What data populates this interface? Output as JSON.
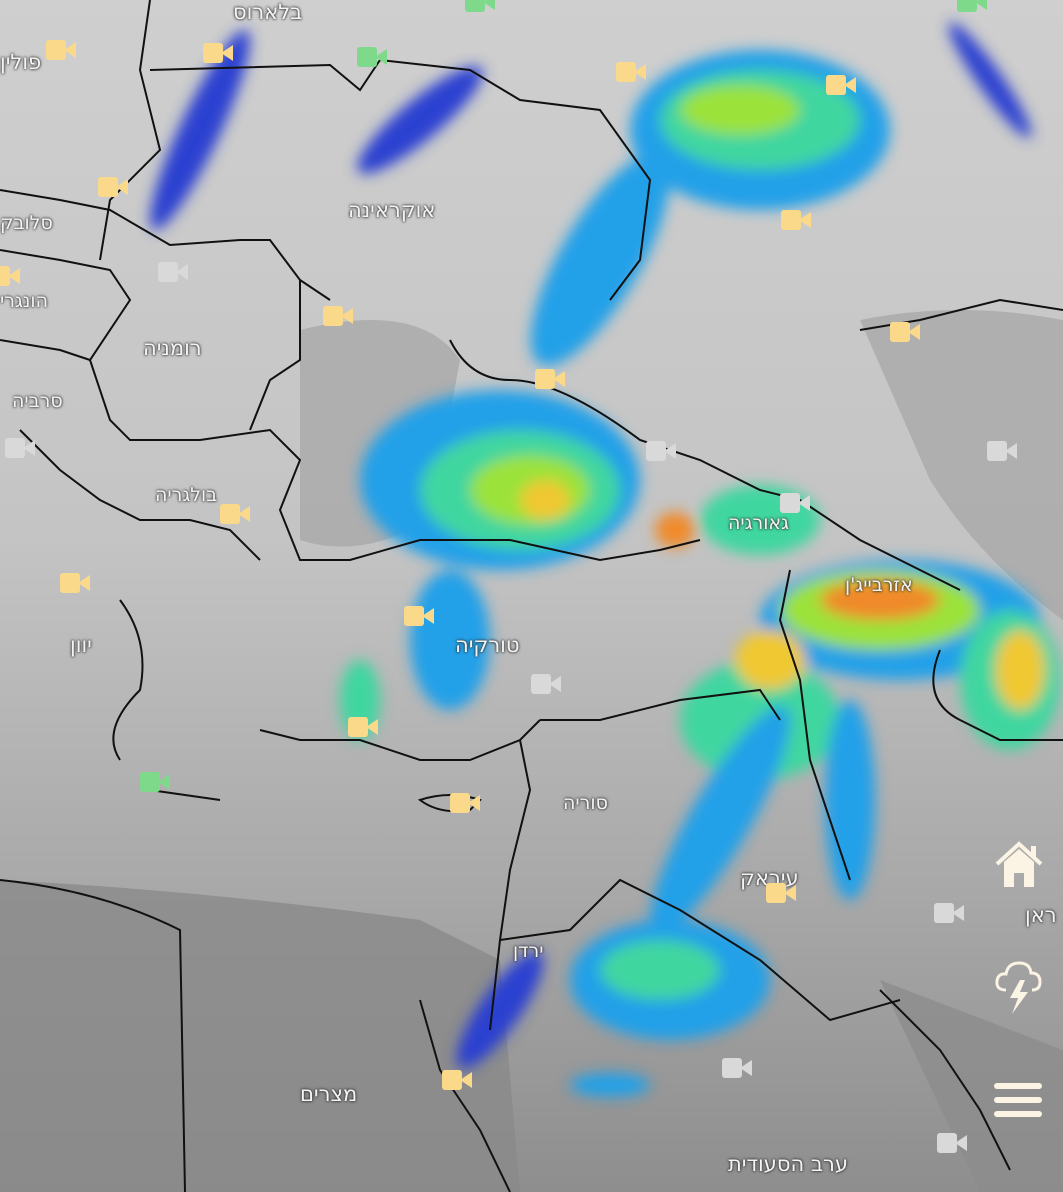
{
  "map": {
    "countries": {
      "belarus": "בלארוס",
      "poland": "פולין",
      "ukraine": "אוקראינה",
      "slovakia": "סלובק",
      "hungary": "הונגרי",
      "romania": "רומניה",
      "serbia": "סרביה",
      "bulgaria": "בולגריה",
      "greece": "יוון",
      "turkey": "טורקיה",
      "georgia": "גאורגיה",
      "azerbaijan": "אזרבייג'ן",
      "syria": "סוריה",
      "iraq": "עיראק",
      "jordan": "ירדן",
      "egypt": "מצרים",
      "saudi_arabia": "ערב הסעודית",
      "iran": "ראן"
    },
    "precipitation_colors": [
      "#2a3fd0",
      "#23a0e8",
      "#3fd6a0",
      "#9be23a",
      "#f0c830",
      "#f08a2a"
    ],
    "camera_status_colors": {
      "active": "#fbd98b",
      "new": "#7fd98a",
      "offline": "#d9d9d9"
    }
  },
  "controls": {
    "home": "home-icon",
    "lightning": "thunderstorm-icon",
    "menu": "hamburger-menu-icon"
  }
}
